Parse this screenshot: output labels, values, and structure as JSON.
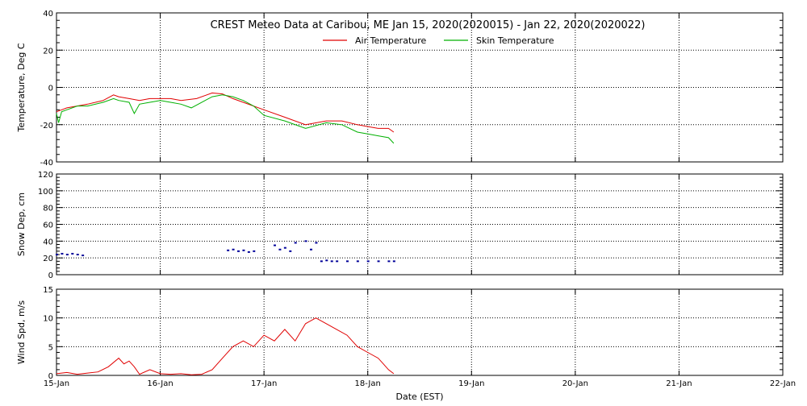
{
  "chart_data": [
    {
      "type": "line",
      "title": "CREST Meteo Data at Caribou, ME   Jan 15, 2020(2020015) - Jan 22, 2020(2020022)",
      "xlabel": "",
      "ylabel": "Temperature, Deg C",
      "xlim": [
        0,
        7
      ],
      "ylim": [
        -40,
        40
      ],
      "yticks": [
        40,
        20,
        0,
        -20,
        -40
      ],
      "yticklabels": [
        "40",
        "20",
        "0",
        "-20",
        "-40"
      ],
      "grid": true,
      "legend": "top-center",
      "series": [
        {
          "name": "Air Temperature",
          "color": "#e00000",
          "x": [
            0,
            0.05,
            0.1,
            0.2,
            0.3,
            0.45,
            0.55,
            0.6,
            0.7,
            0.8,
            0.9,
            1.0,
            1.1,
            1.2,
            1.35,
            1.5,
            1.6,
            1.7,
            1.8,
            2.0,
            2.2,
            2.4,
            2.6,
            2.75,
            2.9,
            3.0,
            3.1,
            3.2,
            3.25
          ],
          "values": [
            -13,
            -12,
            -11,
            -10,
            -9,
            -7,
            -4,
            -5,
            -6,
            -7,
            -6,
            -6,
            -6,
            -7,
            -6,
            -3,
            -3.5,
            -6,
            -8,
            -12,
            -16,
            -20,
            -18,
            -18,
            -20,
            -21,
            -22,
            -22,
            -24
          ]
        },
        {
          "name": "Skin Temperature",
          "color": "#00b000",
          "x": [
            0,
            0.02,
            0.05,
            0.1,
            0.2,
            0.3,
            0.45,
            0.55,
            0.6,
            0.7,
            0.75,
            0.8,
            0.9,
            1.0,
            1.1,
            1.2,
            1.3,
            1.5,
            1.6,
            1.7,
            1.8,
            1.9,
            2.0,
            2.2,
            2.4,
            2.6,
            2.75,
            2.9,
            3.0,
            3.1,
            3.2,
            3.25
          ],
          "values": [
            -14,
            -19,
            -13,
            -12,
            -10,
            -10,
            -8,
            -6,
            -7,
            -8,
            -14,
            -9,
            -8,
            -7,
            -8,
            -9,
            -11,
            -5,
            -4,
            -5,
            -7,
            -10,
            -15,
            -18,
            -22,
            -19,
            -20,
            -24,
            -25,
            -26,
            -27,
            -30
          ]
        }
      ]
    },
    {
      "type": "scatter",
      "title": "",
      "xlabel": "",
      "ylabel": "Snow Dep, cm",
      "xlim": [
        0,
        7
      ],
      "ylim": [
        0,
        120
      ],
      "yticks": [
        120,
        100,
        80,
        60,
        40,
        20,
        0
      ],
      "yticklabels": [
        "120",
        "100",
        "80",
        "60",
        "40",
        "20",
        "0"
      ],
      "grid": true,
      "series": [
        {
          "name": "",
          "color": "#000099",
          "x": [
            0.0,
            0.05,
            0.1,
            0.15,
            0.2,
            0.25,
            1.65,
            1.7,
            1.75,
            1.8,
            1.85,
            1.9,
            2.1,
            2.15,
            2.2,
            2.25,
            2.3,
            2.4,
            2.45,
            2.5,
            2.55,
            2.6,
            2.65,
            2.7,
            2.8,
            2.9,
            3.0,
            3.1,
            3.2,
            3.25
          ],
          "values": [
            24,
            25,
            24,
            25,
            24,
            23,
            29,
            30,
            28,
            29,
            27,
            28,
            35,
            30,
            32,
            28,
            38,
            40,
            30,
            38,
            16,
            17,
            16,
            16,
            16,
            16,
            16,
            16,
            16,
            16
          ]
        }
      ]
    },
    {
      "type": "line",
      "title": "",
      "xlabel": "Date (EST)",
      "ylabel": "Wind Spd, m/s",
      "xlim": [
        0,
        7
      ],
      "ylim": [
        0,
        15
      ],
      "yticks": [
        15,
        10,
        5,
        0
      ],
      "yticklabels": [
        "15",
        "10",
        "5",
        "0"
      ],
      "xticks": [
        0,
        1,
        2,
        3,
        4,
        5,
        6,
        7
      ],
      "xticklabels": [
        "15-Jan",
        "16-Jan",
        "17-Jan",
        "18-Jan",
        "19-Jan",
        "20-Jan",
        "21-Jan",
        "22-Jan"
      ],
      "grid": true,
      "series": [
        {
          "name": "",
          "color": "#e00000",
          "x": [
            0,
            0.1,
            0.2,
            0.3,
            0.4,
            0.5,
            0.6,
            0.65,
            0.7,
            0.75,
            0.8,
            0.9,
            1.0,
            1.1,
            1.2,
            1.3,
            1.4,
            1.5,
            1.6,
            1.7,
            1.8,
            1.9,
            2.0,
            2.1,
            2.2,
            2.3,
            2.4,
            2.5,
            2.6,
            2.7,
            2.8,
            2.9,
            3.0,
            3.1,
            3.15,
            3.2,
            3.25
          ],
          "values": [
            0.3,
            0.5,
            0.2,
            0.4,
            0.6,
            1.5,
            3,
            2,
            2.5,
            1.5,
            0.2,
            1,
            0.3,
            0.2,
            0.3,
            0.1,
            0.2,
            1,
            3,
            5,
            6,
            5,
            7,
            6,
            8,
            6,
            9,
            10,
            9,
            8,
            7,
            5,
            4,
            3,
            2,
            1,
            0.3
          ]
        }
      ]
    }
  ]
}
